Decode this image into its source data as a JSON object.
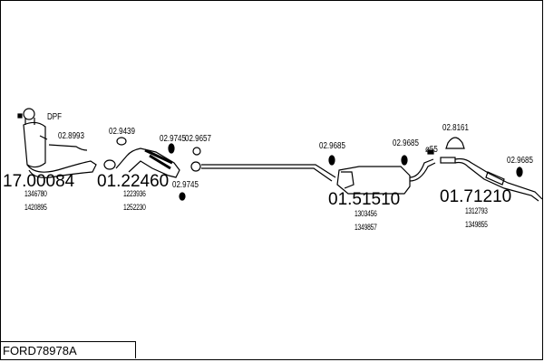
{
  "diagram": {
    "model_code": "FORD78978A",
    "dpf_label": "DPF",
    "parts": [
      {
        "number": "17.00084",
        "refs": [
          "1346780",
          "1420895"
        ]
      },
      {
        "number": "01.22460",
        "refs": [
          "1223936",
          "1252230"
        ]
      },
      {
        "number": "01.51510",
        "refs": [
          "1303456",
          "1349857"
        ]
      },
      {
        "number": "01.71210",
        "refs": [
          "1312793",
          "1349855"
        ]
      }
    ],
    "accessories": [
      "02.8993",
      "02.9439",
      "02.9745",
      "02.9657",
      "02.9745",
      "02.9685",
      "02.9685",
      "02.8161",
      "02.9685"
    ],
    "diameter_label": "ø55"
  }
}
